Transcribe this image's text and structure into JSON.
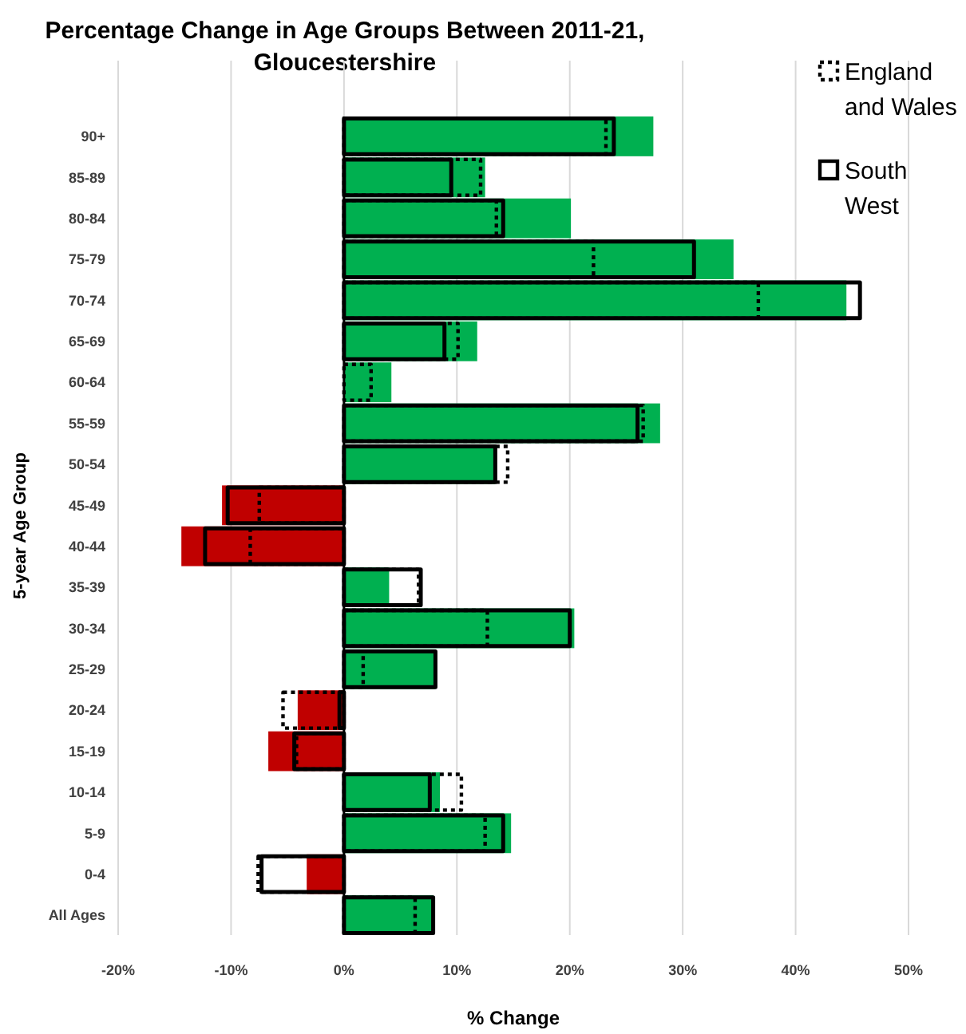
{
  "chart_data": {
    "type": "bar",
    "orientation": "horizontal",
    "title": "Percentage Change in Age Groups Between 2011-21, Gloucestershire",
    "xlabel": "% Change",
    "ylabel": "5-year Age Group",
    "categories": [
      "90+",
      "85-89",
      "80-84",
      "75-79",
      "70-74",
      "65-69",
      "60-64",
      "55-59",
      "50-54",
      "45-49",
      "40-44",
      "35-39",
      "30-34",
      "25-29",
      "20-24",
      "15-19",
      "10-14",
      "5-9",
      "0-4",
      "All Ages"
    ],
    "series": [
      {
        "values": [
          27.4,
          12.5,
          20.1,
          34.5,
          44.5,
          11.8,
          4.2,
          28.0,
          13.4,
          -10.8,
          -14.4,
          4.0,
          20.4,
          8.1,
          -4.1,
          -6.7,
          8.5,
          14.8,
          -3.3,
          7.9
        ],
        "colors": [
          "#00b050",
          "#00b050",
          "#00b050",
          "#00b050",
          "#00b050",
          "#00b050",
          "#00b050",
          "#00b050",
          "#00b050",
          "#c00000",
          "#c00000",
          "#00b050",
          "#00b050",
          "#00b050",
          "#c00000",
          "#c00000",
          "#00b050",
          "#00b050",
          "#c00000",
          "#00b050"
        ]
      },
      {
        "name": "England and Wales",
        "color": "#000000",
        "line_style": "dotted",
        "values": [
          23.2,
          12.1,
          13.5,
          22.1,
          36.7,
          10.1,
          2.4,
          26.5,
          14.5,
          -7.5,
          -8.3,
          6.6,
          12.7,
          1.7,
          -5.4,
          -4.2,
          10.4,
          12.5,
          -7.6,
          6.3
        ]
      },
      {
        "name": "South West",
        "color": "#000000",
        "line_style": "solid",
        "values": [
          23.9,
          9.5,
          14.1,
          31.0,
          45.7,
          8.9,
          0,
          26.0,
          13.4,
          -10.3,
          -12.3,
          6.8,
          20.0,
          8.1,
          -0.4,
          -4.4,
          7.6,
          14.1,
          -7.3,
          7.9
        ]
      }
    ],
    "xlim": [
      -20,
      50
    ],
    "xticks": [
      {
        "value": -20,
        "label": "-20%"
      },
      {
        "value": -10,
        "label": "-10%"
      },
      {
        "value": 0,
        "label": "0%"
      },
      {
        "value": 10,
        "label": "10%"
      },
      {
        "value": 20,
        "label": "20%"
      },
      {
        "value": 30,
        "label": "30%"
      },
      {
        "value": 40,
        "label": "40%"
      },
      {
        "value": 50,
        "label": "50%"
      }
    ],
    "grid": "x",
    "legend": "top right"
  }
}
